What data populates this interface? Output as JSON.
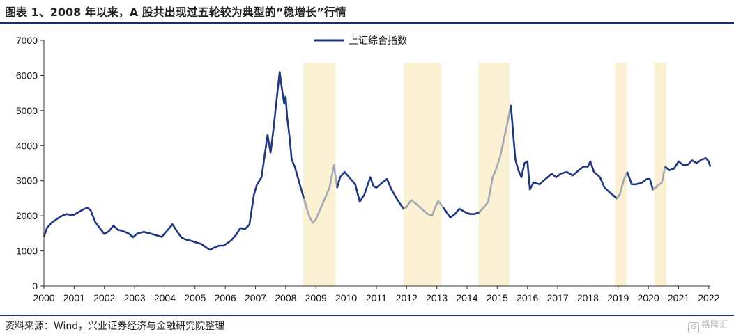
{
  "header": {
    "title": "图表 1、2008 年以来，A 股共出现过五轮较为典型的“稳增长”行情"
  },
  "footer": {
    "source": "资料来源：Wind，兴业证券经济与金融研究院整理"
  },
  "watermark": {
    "glyph": "G",
    "text": "格隆汇"
  },
  "colors": {
    "line": "#1f3681",
    "highlight_line": "#a3a6b4",
    "band": "#fbf0d2",
    "rule": "#1a2e6e"
  },
  "chart_data": {
    "type": "line",
    "title": "图表 1、2008 年以来，A 股共出现过五轮较为典型的“稳增长”行情",
    "xlabel": "",
    "ylabel": "",
    "x_ticks": [
      "2000",
      "2001",
      "2002",
      "2003",
      "2004",
      "2005",
      "2006",
      "2007",
      "2008",
      "2009",
      "2010",
      "2011",
      "2012",
      "2013",
      "2014",
      "2015",
      "2016",
      "2017",
      "2018",
      "2019",
      "2020",
      "2021",
      "2022"
    ],
    "xlim": [
      2000,
      2022.05
    ],
    "ylim": [
      0,
      7000
    ],
    "y_ticks": [
      "0",
      "1000",
      "2000",
      "3000",
      "4000",
      "5000",
      "6000",
      "7000"
    ],
    "grid": false,
    "legend_position": "top-center",
    "series": [
      {
        "name": "上证综合指数",
        "points": [
          [
            2000.0,
            1400
          ],
          [
            2000.1,
            1650
          ],
          [
            2000.25,
            1800
          ],
          [
            2000.45,
            1920
          ],
          [
            2000.6,
            2000
          ],
          [
            2000.75,
            2050
          ],
          [
            2000.9,
            2020
          ],
          [
            2001.0,
            2030
          ],
          [
            2001.15,
            2110
          ],
          [
            2001.3,
            2180
          ],
          [
            2001.45,
            2230
          ],
          [
            2001.55,
            2150
          ],
          [
            2001.7,
            1820
          ],
          [
            2001.85,
            1650
          ],
          [
            2002.0,
            1480
          ],
          [
            2002.15,
            1560
          ],
          [
            2002.3,
            1720
          ],
          [
            2002.45,
            1600
          ],
          [
            2002.6,
            1570
          ],
          [
            2002.8,
            1500
          ],
          [
            2002.95,
            1390
          ],
          [
            2003.1,
            1500
          ],
          [
            2003.3,
            1540
          ],
          [
            2003.5,
            1500
          ],
          [
            2003.7,
            1450
          ],
          [
            2003.9,
            1400
          ],
          [
            2004.0,
            1500
          ],
          [
            2004.15,
            1650
          ],
          [
            2004.25,
            1760
          ],
          [
            2004.4,
            1560
          ],
          [
            2004.55,
            1380
          ],
          [
            2004.7,
            1320
          ],
          [
            2004.9,
            1280
          ],
          [
            2005.0,
            1250
          ],
          [
            2005.2,
            1200
          ],
          [
            2005.4,
            1080
          ],
          [
            2005.5,
            1030
          ],
          [
            2005.6,
            1080
          ],
          [
            2005.8,
            1150
          ],
          [
            2005.95,
            1150
          ],
          [
            2006.0,
            1180
          ],
          [
            2006.2,
            1300
          ],
          [
            2006.35,
            1450
          ],
          [
            2006.5,
            1650
          ],
          [
            2006.65,
            1620
          ],
          [
            2006.8,
            1750
          ],
          [
            2006.95,
            2600
          ],
          [
            2007.05,
            2900
          ],
          [
            2007.2,
            3100
          ],
          [
            2007.3,
            3700
          ],
          [
            2007.4,
            4300
          ],
          [
            2007.5,
            3800
          ],
          [
            2007.6,
            4500
          ],
          [
            2007.7,
            5300
          ],
          [
            2007.8,
            6100
          ],
          [
            2007.88,
            5600
          ],
          [
            2007.95,
            5200
          ],
          [
            2008.0,
            5400
          ],
          [
            2008.05,
            4800
          ],
          [
            2008.12,
            4300
          ],
          [
            2008.2,
            3600
          ],
          [
            2008.3,
            3400
          ],
          [
            2008.4,
            3100
          ],
          [
            2008.5,
            2800
          ],
          [
            2008.6,
            2500
          ],
          [
            2008.7,
            2200
          ],
          [
            2008.8,
            1950
          ],
          [
            2008.9,
            1800
          ],
          [
            2009.0,
            1900
          ],
          [
            2009.15,
            2200
          ],
          [
            2009.3,
            2500
          ],
          [
            2009.45,
            2800
          ],
          [
            2009.6,
            3450
          ],
          [
            2009.7,
            2800
          ],
          [
            2009.8,
            3100
          ],
          [
            2009.95,
            3250
          ],
          [
            2010.1,
            3100
          ],
          [
            2010.3,
            2900
          ],
          [
            2010.45,
            2400
          ],
          [
            2010.6,
            2600
          ],
          [
            2010.8,
            3100
          ],
          [
            2010.9,
            2850
          ],
          [
            2011.0,
            2800
          ],
          [
            2011.2,
            2950
          ],
          [
            2011.35,
            3050
          ],
          [
            2011.5,
            2750
          ],
          [
            2011.7,
            2450
          ],
          [
            2011.9,
            2200
          ],
          [
            2012.0,
            2250
          ],
          [
            2012.15,
            2450
          ],
          [
            2012.3,
            2350
          ],
          [
            2012.5,
            2200
          ],
          [
            2012.7,
            2050
          ],
          [
            2012.85,
            2000
          ],
          [
            2012.95,
            2250
          ],
          [
            2013.05,
            2420
          ],
          [
            2013.2,
            2250
          ],
          [
            2013.45,
            1950
          ],
          [
            2013.6,
            2050
          ],
          [
            2013.75,
            2200
          ],
          [
            2013.95,
            2100
          ],
          [
            2014.1,
            2050
          ],
          [
            2014.25,
            2050
          ],
          [
            2014.4,
            2100
          ],
          [
            2014.55,
            2230
          ],
          [
            2014.7,
            2400
          ],
          [
            2014.85,
            3100
          ],
          [
            2014.95,
            3300
          ],
          [
            2015.1,
            3700
          ],
          [
            2015.25,
            4300
          ],
          [
            2015.35,
            4700
          ],
          [
            2015.45,
            5150
          ],
          [
            2015.55,
            4100
          ],
          [
            2015.6,
            3600
          ],
          [
            2015.7,
            3300
          ],
          [
            2015.8,
            3100
          ],
          [
            2015.9,
            3500
          ],
          [
            2016.0,
            3550
          ],
          [
            2016.08,
            2750
          ],
          [
            2016.2,
            2950
          ],
          [
            2016.4,
            2900
          ],
          [
            2016.6,
            3050
          ],
          [
            2016.8,
            3200
          ],
          [
            2016.95,
            3100
          ],
          [
            2017.1,
            3200
          ],
          [
            2017.3,
            3250
          ],
          [
            2017.5,
            3150
          ],
          [
            2017.7,
            3300
          ],
          [
            2017.85,
            3400
          ],
          [
            2018.0,
            3400
          ],
          [
            2018.08,
            3550
          ],
          [
            2018.2,
            3250
          ],
          [
            2018.4,
            3100
          ],
          [
            2018.55,
            2800
          ],
          [
            2018.75,
            2650
          ],
          [
            2018.95,
            2500
          ],
          [
            2019.05,
            2600
          ],
          [
            2019.2,
            3050
          ],
          [
            2019.3,
            3250
          ],
          [
            2019.45,
            2900
          ],
          [
            2019.6,
            2900
          ],
          [
            2019.8,
            2950
          ],
          [
            2019.95,
            3050
          ],
          [
            2020.05,
            3050
          ],
          [
            2020.15,
            2750
          ],
          [
            2020.3,
            2850
          ],
          [
            2020.45,
            2950
          ],
          [
            2020.55,
            3400
          ],
          [
            2020.7,
            3300
          ],
          [
            2020.85,
            3350
          ],
          [
            2021.0,
            3550
          ],
          [
            2021.15,
            3450
          ],
          [
            2021.3,
            3450
          ],
          [
            2021.45,
            3580
          ],
          [
            2021.6,
            3500
          ],
          [
            2021.75,
            3600
          ],
          [
            2021.9,
            3640
          ],
          [
            2022.0,
            3550
          ],
          [
            2022.05,
            3400
          ]
        ]
      }
    ],
    "highlight_periods": [
      {
        "start": 2008.58,
        "end": 2009.65
      },
      {
        "start": 2011.9,
        "end": 2013.15
      },
      {
        "start": 2014.38,
        "end": 2015.4
      },
      {
        "start": 2018.9,
        "end": 2019.28
      },
      {
        "start": 2020.2,
        "end": 2020.6
      }
    ]
  }
}
